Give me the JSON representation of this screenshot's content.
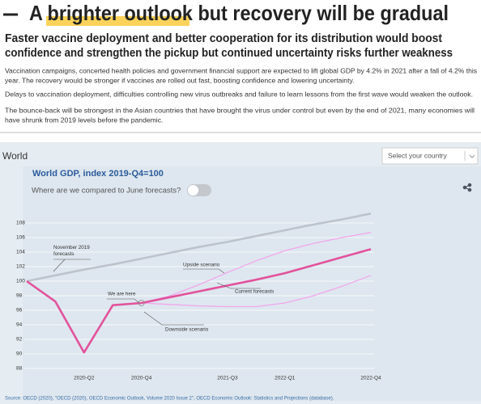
{
  "header": {
    "title_parts": [
      "A",
      "brighter outlook",
      "but recovery will be gradual"
    ],
    "subtitle_lines": [
      "Faster vaccine deployment and better cooperation for its distribution would boost",
      "confidence and strengthen the pickup but continued uncertainty risks further weakness"
    ],
    "paragraphs": [
      {
        "lines": [
          "Vaccination campaigns, concerted health policies and government financial support are expected to lift global GDP by 4.2% in 2021 after a fall of 4.2% this",
          "year. The recovery would be stronger if vaccines are rolled out fast, boosting confidence and lowering uncertainty."
        ]
      },
      {
        "lines": [
          "Delays to vaccination deployment, difficulties controlling new virus outbreaks and failure to learn lessons from the first wave would weaken the outlook."
        ]
      },
      {
        "lines": [
          "The bounce-back will be strongest in the Asian countries that have brought the virus under control but even by the end of 2021, many economies will",
          "have shrunk from 2019 levels before the pandemic."
        ]
      }
    ]
  },
  "panel": {
    "region": "World",
    "select_placeholder": "Select your country",
    "toggle_label": "Where are we compared to June forecasts?"
  },
  "chart_data": {
    "type": "line",
    "title": "World GDP, index 2019-Q4=100",
    "categories": [
      null,
      null,
      "2020-Q2",
      null,
      "2020-Q4",
      null,
      null,
      "2021-Q3",
      null,
      "2022-Q1",
      null,
      null,
      "2022-Q4"
    ],
    "series": [
      {
        "name": "November 2019 forecasts",
        "color": "#bcc3cc",
        "values": [
          100,
          100.8,
          101.6,
          102.3,
          103.1,
          103.9,
          104.7,
          105.4,
          106.2,
          107.0,
          107.8,
          108.5,
          109.3
        ]
      },
      {
        "name": "Upside scenario",
        "color": "#f2a6ec",
        "values": [
          null,
          null,
          null,
          null,
          97.0,
          98.0,
          99.5,
          101.2,
          102.8,
          104.2,
          105.2,
          106.0,
          106.7
        ]
      },
      {
        "name": "Downside scenario",
        "color": "#f2a6ec",
        "values": [
          null,
          null,
          null,
          null,
          97.0,
          96.8,
          96.6,
          96.5,
          96.5,
          97.0,
          98.0,
          99.3,
          100.8
        ]
      },
      {
        "name": "Current forecasts",
        "color": "#e2529c",
        "values": [
          100,
          97.2,
          90.2,
          96.7,
          97.0,
          97.8,
          98.6,
          99.4,
          100.2,
          101.1,
          102.2,
          103.3,
          104.4
        ]
      }
    ],
    "annotations": [
      "We are here"
    ],
    "ylim": [
      87,
      110
    ],
    "yticks": [
      88,
      90,
      92,
      94,
      96,
      98,
      100,
      102,
      104,
      106,
      108
    ],
    "grid": true,
    "source": "Source: OECD (2020), \"OECD (2020), OECD Economic Outlook, Volume 2020 Issue 2\", OECD Economic Outlook: Statistics and Projections (database)."
  }
}
